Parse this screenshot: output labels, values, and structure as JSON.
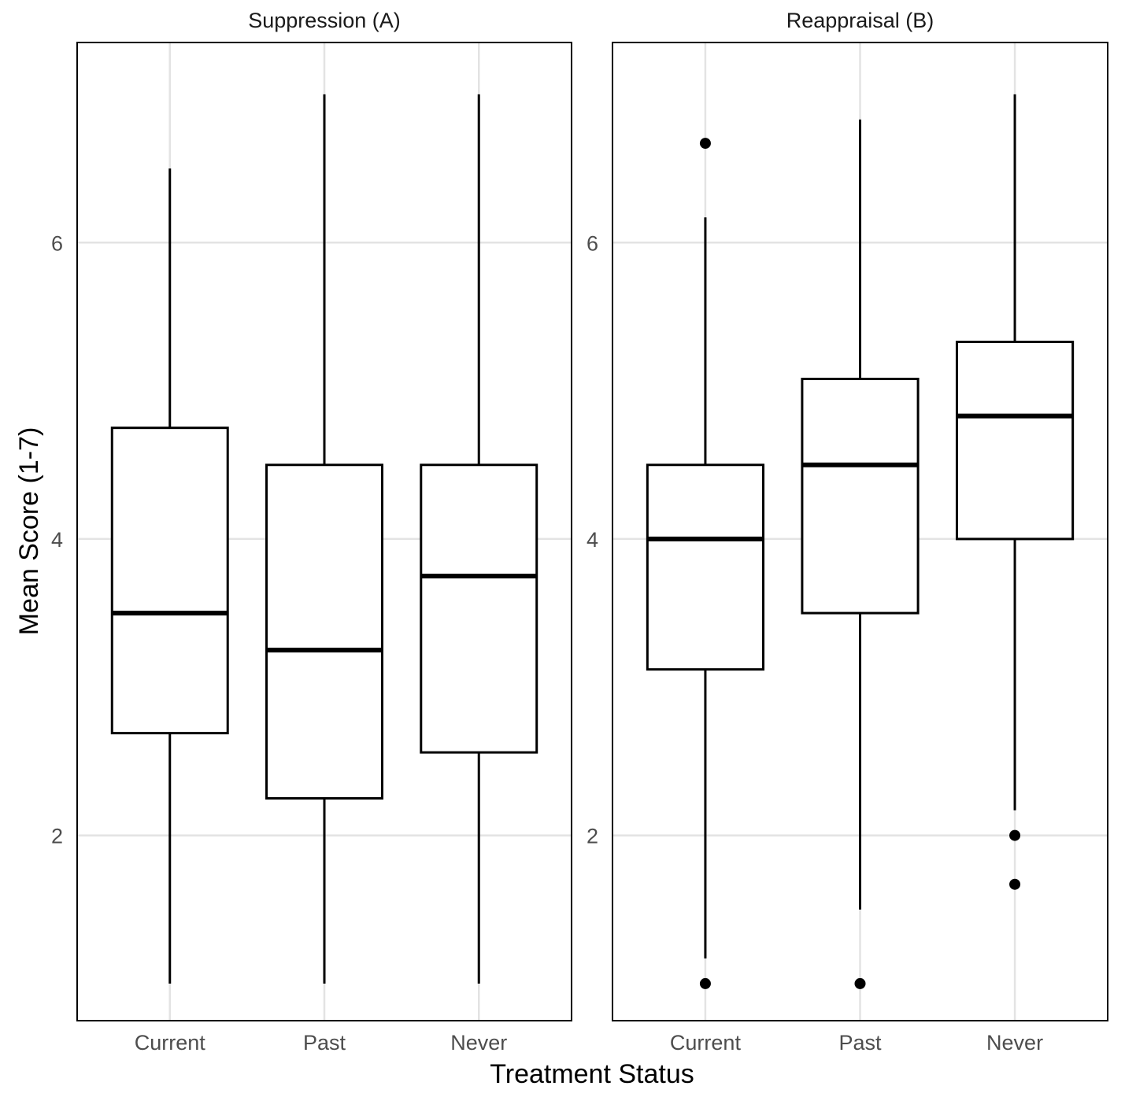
{
  "chart_data": {
    "type": "boxplot",
    "x_label": "Treatment Status",
    "y_label": "Mean Score (1-7)",
    "categories": [
      "Current",
      "Past",
      "Never"
    ],
    "y_range": [
      0.75,
      7.35
    ],
    "y_ticks": [
      2,
      4,
      6
    ],
    "grid": true,
    "panels": [
      {
        "title": "Suppression (A)",
        "boxes": [
          {
            "category": "Current",
            "whisker_low": 1.0,
            "q1": 2.69,
            "median": 3.5,
            "q3": 4.75,
            "whisker_high": 6.5,
            "outliers": []
          },
          {
            "category": "Past",
            "whisker_low": 1.0,
            "q1": 2.25,
            "median": 3.25,
            "q3": 4.5,
            "whisker_high": 7.0,
            "outliers": []
          },
          {
            "category": "Never",
            "whisker_low": 1.0,
            "q1": 2.56,
            "median": 3.75,
            "q3": 4.5,
            "whisker_high": 7.0,
            "outliers": []
          }
        ]
      },
      {
        "title": "Reappraisal (B)",
        "boxes": [
          {
            "category": "Current",
            "whisker_low": 1.17,
            "q1": 3.12,
            "median": 4.0,
            "q3": 4.5,
            "whisker_high": 6.17,
            "outliers": [
              6.67,
              1.0
            ]
          },
          {
            "category": "Past",
            "whisker_low": 1.5,
            "q1": 3.5,
            "median": 4.5,
            "q3": 5.08,
            "whisker_high": 6.83,
            "outliers": [
              1.0
            ]
          },
          {
            "category": "Never",
            "whisker_low": 2.17,
            "q1": 4.0,
            "median": 4.83,
            "q3": 5.33,
            "whisker_high": 7.0,
            "outliers": [
              2.0,
              1.67
            ]
          }
        ]
      }
    ]
  }
}
